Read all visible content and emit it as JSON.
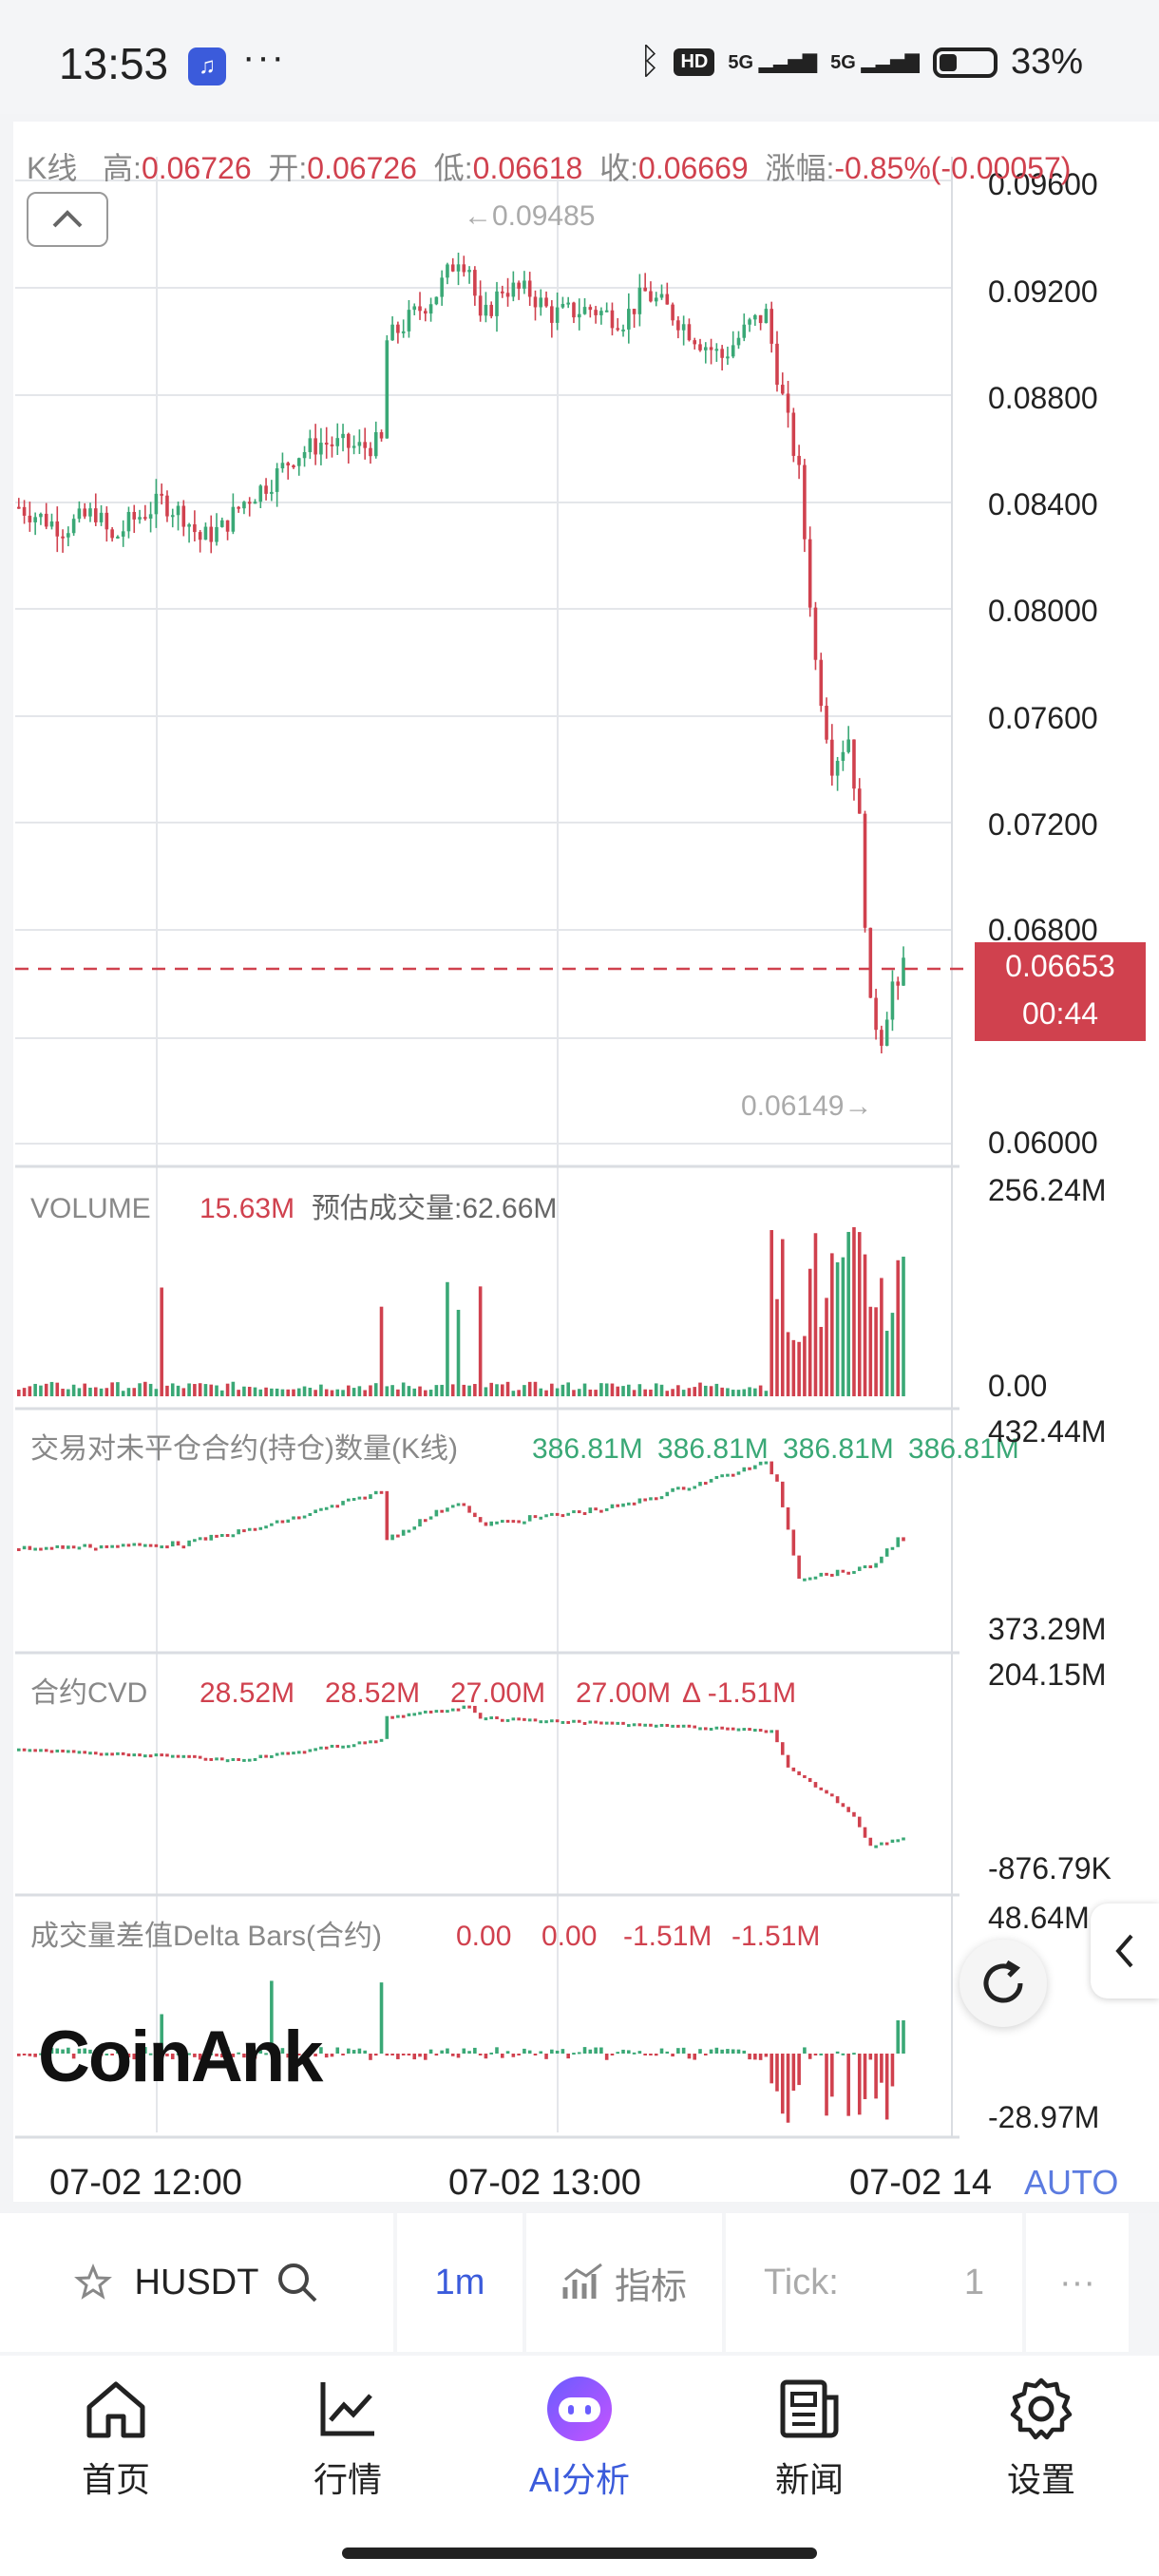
{
  "status_bar": {
    "time": "13:53",
    "app_icon": "voice-app-icon",
    "more": "···",
    "hd_label": "HD",
    "signal1": "5G",
    "signal2": "5G",
    "battery": "33%"
  },
  "chart_header": {
    "k_label": "K线",
    "high_label": "高:",
    "high": "0.06726",
    "open_label": "开:",
    "open": "0.06726",
    "low_label": "低:",
    "low": "0.06618",
    "close_label": "收:",
    "close": "0.06669",
    "change_label": "涨幅:",
    "change": "-0.85%(-0.00057)"
  },
  "main_chart": {
    "price_axis": [
      "0.09600",
      "0.09200",
      "0.08800",
      "0.08400",
      "0.08000",
      "0.07600",
      "0.07200",
      "0.06800",
      "0.06000"
    ],
    "max_marker": "←0.09485",
    "min_marker": "0.06149→",
    "current_price": "0.06653",
    "countdown": "00:44"
  },
  "volume_panel": {
    "label": "VOLUME",
    "value": "15.63M",
    "estimate_label": "预估成交量:",
    "estimate": "62.66M",
    "axis_top": "256.24M",
    "axis_bottom": "0.00"
  },
  "oi_panel": {
    "label": "交易对未平仓合约(持仓)数量(K线)",
    "values": [
      "386.81M",
      "386.81M",
      "386.81M",
      "386.81M"
    ],
    "axis_top": "432.44M",
    "axis_bottom": "373.29M"
  },
  "cvd_panel": {
    "label": "合约CVD",
    "values": [
      "28.52M",
      "28.52M",
      "27.00M",
      "27.00M"
    ],
    "delta": "Δ -1.51M",
    "axis_top": "204.15M",
    "axis_bottom": "-876.79K"
  },
  "delta_panel": {
    "label": "成交量差值Delta Bars(合约)",
    "values": [
      "0.00",
      "0.00",
      "-1.51M",
      "-1.51M"
    ],
    "axis_top": "48.64M",
    "axis_bottom": "-28.97M"
  },
  "time_axis": [
    "07-02 12:00",
    "07-02 13:00",
    "07-02 14"
  ],
  "auto_label": "AUTO",
  "watermark": "CoinAnk",
  "toolbar": {
    "symbol": "HUSDT",
    "interval": "1m",
    "indicators": "指标",
    "tick_label": "Tick:",
    "tick_value": "1",
    "more": "···"
  },
  "nav": {
    "home": "首页",
    "market": "行情",
    "ai": "AI分析",
    "news": "新闻",
    "settings": "设置"
  },
  "colors": {
    "up": "#3aa876",
    "down": "#d0414e",
    "accent": "#3b5bdb"
  }
}
